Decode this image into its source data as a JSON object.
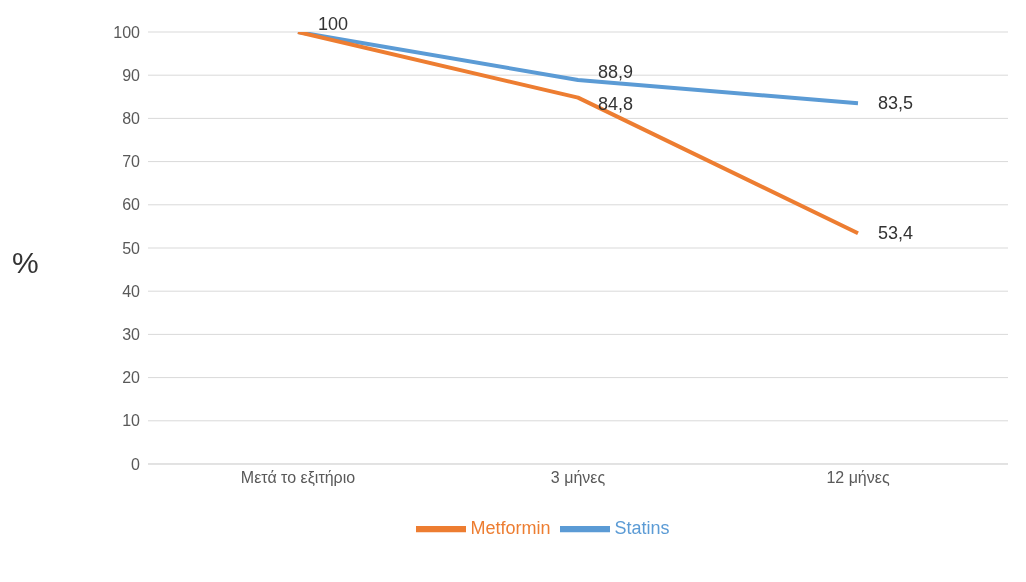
{
  "chart_data": {
    "type": "line",
    "ylabel": "%",
    "categories": [
      "Μετά το εξιτήριο",
      "3 μήνες",
      "12 μήνες"
    ],
    "series": [
      {
        "name": "Statins",
        "color": "#5b9bd5",
        "values": [
          100,
          88.9,
          83.5
        ],
        "value_labels": [
          "100",
          "88,9",
          "83,5"
        ]
      },
      {
        "name": "Metformin",
        "color": "#ed7d31",
        "values": [
          100,
          84.8,
          53.4
        ],
        "value_labels": [
          null,
          "84,8",
          "53,4"
        ]
      }
    ],
    "ylim": [
      0,
      100
    ],
    "yticks": [
      0,
      10,
      20,
      30,
      40,
      50,
      60,
      70,
      80,
      90,
      100
    ],
    "grid": "y",
    "legend": "bottom",
    "marker": "none",
    "line_style": "solid"
  }
}
